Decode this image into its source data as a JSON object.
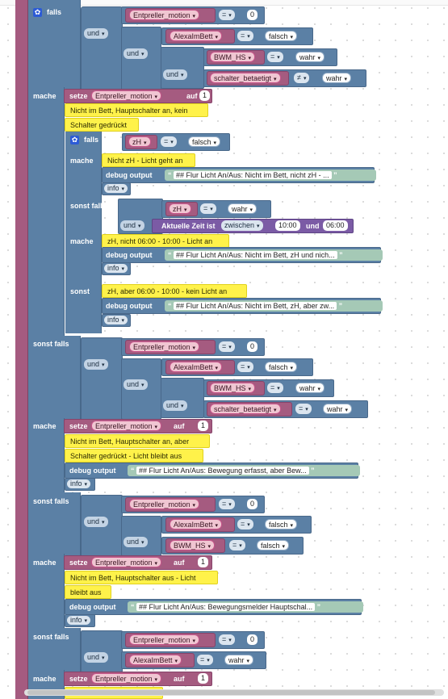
{
  "keywords": {
    "falls": "falls",
    "mache": "mache",
    "sonst_falls": "sonst falls",
    "sonst": "sonst",
    "und": "und",
    "setze": "setze",
    "auf": "auf",
    "debug_output": "debug output",
    "info": "info",
    "aktuelle_zeit": "Aktuelle Zeit ist",
    "zwischen": "zwischen"
  },
  "vars": {
    "entpreller": "Entpreller_motion",
    "alexa": "AlexaImBett",
    "bwm": "BWM_HS",
    "schalter": "schalter_betaetigt",
    "zh": "zH"
  },
  "ops": {
    "eq": "=",
    "neq": "≠"
  },
  "values": {
    "zero": "0",
    "one": "1",
    "falsch": "falsch",
    "wahr": "wahr",
    "t1000": "10:00",
    "und_time": "und",
    "t0600": "06:00"
  },
  "comments": {
    "c1a": "Nicht im Bett, Hauptschalter an, kein",
    "c1b": "Schalter gedrückt",
    "c2": "Nicht zH - Licht geht an",
    "c3": "zH, nicht 06:00 - 10:00 - Licht an",
    "c4": "zH, aber 06:00 - 10:00 - kein Licht an",
    "c5a": "Nicht im Bett, Hauptschalter an, aber",
    "c5b": "Schalter gedrückt - Licht bleibt aus",
    "c6a": "Nicht im Bett, Hauptschalter aus - Licht",
    "c6b": "bleibt aus"
  },
  "debug": {
    "d1": "## Flur Licht An/Aus: Nicht im Bett, nicht zH - ...",
    "d2": "## Flur Licht An/Aus: Nicht im Bett, zH und nich...",
    "d3": "## Flur Licht An/Aus: Nicht im Bett, zH, aber zw...",
    "d4": "## Flur Licht An/Aus: Bewegung erfasst, aber Bew...",
    "d5": "## Flur Licht An/Aus: Bewegungsmelder Hauptschal..."
  },
  "icons": {
    "gear": "gear-icon",
    "chevron": "▾"
  },
  "colors": {
    "logic": "#5b80a5",
    "variable": "#a55b80",
    "text": "#a5c9b6",
    "comment": "#fff24a",
    "time": "#7b5ba5"
  }
}
